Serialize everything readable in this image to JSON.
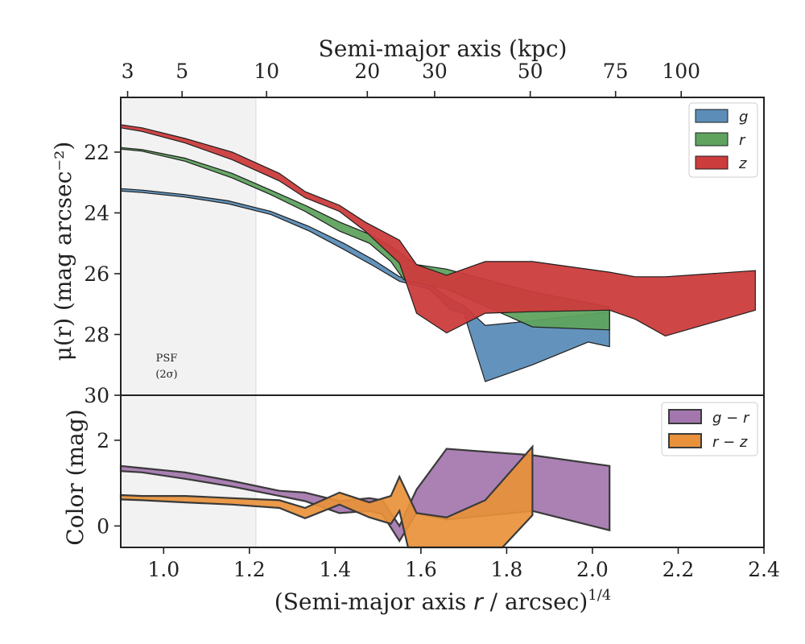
{
  "chart_data": {
    "type": "area",
    "xlabel_main": "(Semi-major axis ",
    "xlabel_r": "r",
    "xlabel_rest": " / arcsec)",
    "xlabel_sup": "1/4",
    "top_axis_label": "Semi-major axis (kpc)",
    "top_ticks": [
      {
        "label": "3",
        "x": 0.916
      },
      {
        "label": "5",
        "x": 1.043
      },
      {
        "label": "10",
        "x": 1.24
      },
      {
        "label": "20",
        "x": 1.475
      },
      {
        "label": "30",
        "x": 1.632
      },
      {
        "label": "50",
        "x": 1.855
      },
      {
        "label": "75",
        "x": 2.054
      },
      {
        "label": "100",
        "x": 2.207
      }
    ],
    "x_ticks": [
      {
        "label": "1.0",
        "x": 1.0
      },
      {
        "label": "1.2",
        "x": 1.2
      },
      {
        "label": "1.4",
        "x": 1.4
      },
      {
        "label": "1.6",
        "x": 1.6
      },
      {
        "label": "1.8",
        "x": 1.8
      },
      {
        "label": "2.0",
        "x": 2.0
      },
      {
        "label": "2.2",
        "x": 2.2
      },
      {
        "label": "2.4",
        "x": 2.4
      }
    ],
    "xlim": [
      0.9,
      2.4
    ],
    "psf": {
      "line1": "PSF",
      "line2": "(2σ)",
      "x_end": 1.215
    },
    "panels": [
      {
        "name": "surface-brightness",
        "ylabel": "μ(r) (mag arcsec⁻²)",
        "ylim": [
          30,
          20.2
        ],
        "y_ticks": [
          {
            "label": "22",
            "y": 22
          },
          {
            "label": "24",
            "y": 24
          },
          {
            "label": "26",
            "y": 26
          },
          {
            "label": "28",
            "y": 28
          },
          {
            "label": "30",
            "y": 30
          }
        ],
        "legend": "top-right",
        "series": [
          {
            "name": "g",
            "color": "#5b8db8",
            "upper": [
              [
                0.9,
                23.2
              ],
              [
                0.95,
                23.25
              ],
              [
                1.05,
                23.4
              ],
              [
                1.15,
                23.6
              ],
              [
                1.25,
                23.95
              ],
              [
                1.34,
                24.45
              ],
              [
                1.42,
                25.0
              ],
              [
                1.49,
                25.55
              ],
              [
                1.55,
                26.1
              ],
              [
                1.62,
                26.35
              ],
              [
                1.67,
                26.85
              ],
              [
                1.7,
                27.05
              ],
              [
                1.75,
                27.7
              ],
              [
                1.86,
                27.55
              ],
              [
                2.04,
                27.25
              ]
            ],
            "lower": [
              [
                0.9,
                23.28
              ],
              [
                0.95,
                23.33
              ],
              [
                1.05,
                23.48
              ],
              [
                1.15,
                23.7
              ],
              [
                1.25,
                24.05
              ],
              [
                1.34,
                24.6
              ],
              [
                1.42,
                25.2
              ],
              [
                1.49,
                25.75
              ],
              [
                1.55,
                26.25
              ],
              [
                1.62,
                26.5
              ],
              [
                1.67,
                27.2
              ],
              [
                1.7,
                27.3
              ],
              [
                1.75,
                29.55
              ],
              [
                1.86,
                29.0
              ],
              [
                1.99,
                28.25
              ],
              [
                2.04,
                28.4
              ]
            ]
          },
          {
            "name": "r",
            "color": "#5fa35f",
            "upper": [
              [
                0.9,
                21.85
              ],
              [
                0.95,
                21.92
              ],
              [
                1.05,
                22.2
              ],
              [
                1.16,
                22.7
              ],
              [
                1.25,
                23.25
              ],
              [
                1.33,
                23.75
              ],
              [
                1.41,
                24.3
              ],
              [
                1.48,
                24.7
              ],
              [
                1.53,
                25.1
              ],
              [
                1.59,
                25.7
              ],
              [
                1.66,
                25.85
              ],
              [
                1.86,
                26.6
              ],
              [
                2.04,
                27.1
              ]
            ],
            "lower": [
              [
                0.9,
                21.9
              ],
              [
                0.95,
                21.97
              ],
              [
                1.05,
                22.3
              ],
              [
                1.16,
                22.85
              ],
              [
                1.25,
                23.4
              ],
              [
                1.33,
                23.95
              ],
              [
                1.41,
                24.6
              ],
              [
                1.48,
                25.0
              ],
              [
                1.53,
                25.6
              ],
              [
                1.56,
                26.2
              ],
              [
                1.59,
                26.3
              ],
              [
                1.66,
                26.5
              ],
              [
                1.86,
                27.75
              ],
              [
                2.04,
                27.85
              ]
            ]
          },
          {
            "name": "z",
            "color": "#cc3c3c",
            "upper": [
              [
                0.9,
                21.1
              ],
              [
                0.95,
                21.2
              ],
              [
                1.05,
                21.55
              ],
              [
                1.16,
                22.0
              ],
              [
                1.27,
                22.7
              ],
              [
                1.33,
                23.3
              ],
              [
                1.41,
                23.75
              ],
              [
                1.47,
                24.3
              ],
              [
                1.55,
                24.9
              ],
              [
                1.59,
                25.7
              ],
              [
                1.66,
                26.05
              ],
              [
                1.75,
                25.6
              ],
              [
                1.86,
                25.6
              ],
              [
                2.04,
                25.95
              ],
              [
                2.1,
                26.1
              ],
              [
                2.17,
                26.1
              ],
              [
                2.38,
                25.9
              ]
            ],
            "lower": [
              [
                0.9,
                21.2
              ],
              [
                0.95,
                21.32
              ],
              [
                1.05,
                21.7
              ],
              [
                1.16,
                22.25
              ],
              [
                1.27,
                22.95
              ],
              [
                1.33,
                23.5
              ],
              [
                1.41,
                23.95
              ],
              [
                1.47,
                24.6
              ],
              [
                1.55,
                25.65
              ],
              [
                1.59,
                27.3
              ],
              [
                1.66,
                27.95
              ],
              [
                1.75,
                27.3
              ],
              [
                1.86,
                27.25
              ],
              [
                2.04,
                27.2
              ],
              [
                2.1,
                27.5
              ],
              [
                2.17,
                28.05
              ],
              [
                2.38,
                27.2
              ]
            ]
          }
        ]
      },
      {
        "name": "color",
        "ylabel": "Color (mag)",
        "ylim": [
          -0.5,
          3.05
        ],
        "y_ticks": [
          {
            "label": "0",
            "y": 0
          },
          {
            "label": "2",
            "y": 2
          }
        ],
        "legend": "top-right",
        "series": [
          {
            "name": "g − r",
            "color": "#a476ae",
            "upper": [
              [
                0.9,
                1.4
              ],
              [
                0.95,
                1.35
              ],
              [
                1.05,
                1.25
              ],
              [
                1.16,
                1.05
              ],
              [
                1.27,
                0.82
              ],
              [
                1.33,
                0.78
              ],
              [
                1.41,
                0.58
              ],
              [
                1.48,
                0.65
              ],
              [
                1.51,
                0.6
              ],
              [
                1.55,
                0.0
              ],
              [
                1.59,
                0.85
              ],
              [
                1.66,
                1.8
              ],
              [
                1.86,
                1.65
              ],
              [
                2.04,
                1.4
              ]
            ],
            "lower": [
              [
                0.9,
                1.28
              ],
              [
                0.95,
                1.25
              ],
              [
                1.05,
                1.1
              ],
              [
                1.16,
                0.92
              ],
              [
                1.27,
                0.7
              ],
              [
                1.33,
                0.58
              ],
              [
                1.41,
                0.3
              ],
              [
                1.48,
                0.35
              ],
              [
                1.51,
                0.28
              ],
              [
                1.55,
                -0.35
              ],
              [
                1.59,
                0.3
              ],
              [
                1.66,
                0.15
              ],
              [
                1.86,
                0.35
              ],
              [
                2.04,
                -0.1
              ]
            ]
          },
          {
            "name": "r − z",
            "color": "#e8913a",
            "upper": [
              [
                0.9,
                0.72
              ],
              [
                0.95,
                0.7
              ],
              [
                1.05,
                0.7
              ],
              [
                1.16,
                0.65
              ],
              [
                1.27,
                0.6
              ],
              [
                1.33,
                0.42
              ],
              [
                1.41,
                0.78
              ],
              [
                1.48,
                0.55
              ],
              [
                1.53,
                0.7
              ],
              [
                1.55,
                1.15
              ],
              [
                1.59,
                0.3
              ],
              [
                1.66,
                0.2
              ],
              [
                1.75,
                0.6
              ],
              [
                1.86,
                1.85
              ]
            ],
            "lower": [
              [
                0.9,
                0.62
              ],
              [
                0.95,
                0.6
              ],
              [
                1.05,
                0.55
              ],
              [
                1.16,
                0.5
              ],
              [
                1.27,
                0.42
              ],
              [
                1.33,
                0.18
              ],
              [
                1.41,
                0.5
              ],
              [
                1.48,
                0.2
              ],
              [
                1.53,
                0.05
              ],
              [
                1.55,
                0.35
              ],
              [
                1.57,
                -0.5
              ],
              [
                1.7,
                -0.5
              ],
              [
                1.79,
                -0.5
              ],
              [
                1.86,
                0.25
              ]
            ]
          }
        ]
      }
    ]
  }
}
